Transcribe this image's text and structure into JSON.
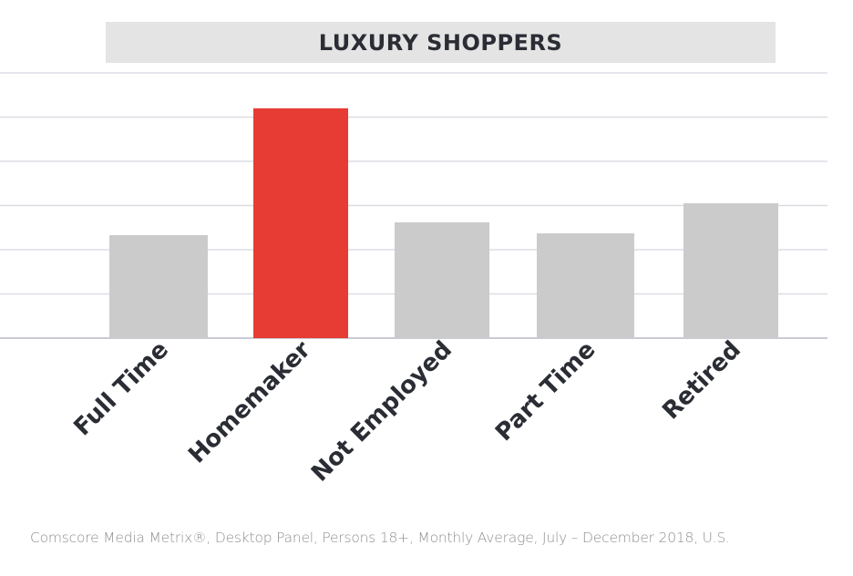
{
  "chart_data": {
    "type": "bar",
    "title": "LUXURY SHOPPERS",
    "categories": [
      "Full Time",
      "Homemaker",
      "Not Employed",
      "Part Time",
      "Retired"
    ],
    "values": [
      2.33,
      5.2,
      2.62,
      2.37,
      3.05
    ],
    "ylim": [
      0,
      6
    ],
    "grid": true,
    "yaxis_labels_shown": false,
    "colors": [
      "#cbcbcb",
      "#e63c34",
      "#cbcbcb",
      "#cbcbcb",
      "#cbcbcb"
    ],
    "highlight_color": "#e63c34",
    "bar_color": "#cbcbcb"
  },
  "footer": "Comscore Media Metrix®, Desktop Panel, Persons 18+, Monthly Average, July – December 2018, U.S."
}
